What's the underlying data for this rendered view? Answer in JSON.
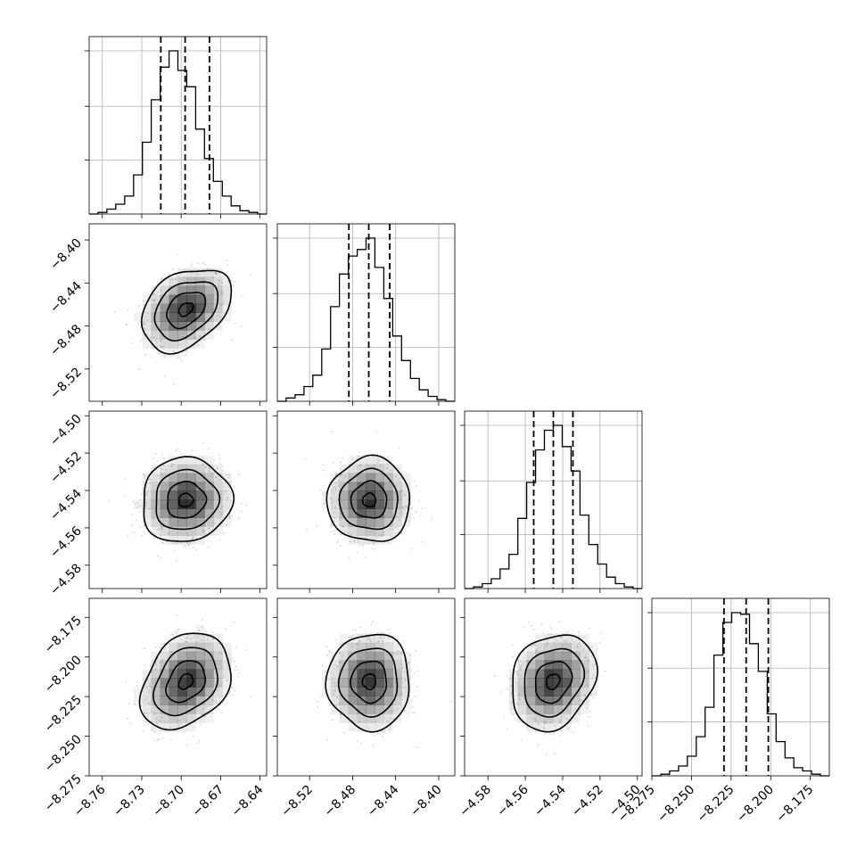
{
  "chart_data": {
    "type": "corner",
    "grid": true,
    "parameters": [
      {
        "range": [
          -8.77,
          -8.635
        ],
        "mean": -8.6965,
        "sd": 0.0155,
        "quantiles": [
          -8.7155,
          -8.697,
          -8.6785
        ]
      },
      {
        "range": [
          -8.55,
          -8.385
        ],
        "mean": -8.4645,
        "sd": 0.0175,
        "quantiles": [
          -8.4835,
          -8.465,
          -8.4455
        ]
      },
      {
        "range": [
          -4.5925,
          -4.4975
        ],
        "mean": -4.5452,
        "sd": 0.0103,
        "quantiles": [
          -4.5555,
          -4.545,
          -4.5345
        ]
      },
      {
        "range": [
          -8.275,
          -8.163
        ],
        "mean": -8.2155,
        "sd": 0.0138,
        "quantiles": [
          -8.2295,
          -8.2155,
          -8.2015
        ]
      }
    ],
    "correlations": {
      "1-0": 0.35,
      "2-0": 0.05,
      "2-1": 0.0,
      "3-0": 0.3,
      "3-1": 0.0,
      "3-2": 0.2
    },
    "hist_levels": [
      [
        0.0,
        0.01,
        0.03,
        0.06,
        0.11,
        0.24,
        0.44,
        0.7,
        0.9,
        1.0,
        0.88,
        0.78,
        0.52,
        0.34,
        0.2,
        0.11,
        0.05,
        0.02,
        0.01,
        0.0
      ],
      [
        0.0,
        0.02,
        0.04,
        0.09,
        0.16,
        0.32,
        0.58,
        0.78,
        0.89,
        0.93,
        1.0,
        0.82,
        0.63,
        0.4,
        0.25,
        0.14,
        0.07,
        0.03,
        0.01,
        0.0
      ],
      [
        0.0,
        0.01,
        0.03,
        0.06,
        0.12,
        0.21,
        0.43,
        0.65,
        0.85,
        0.97,
        1.0,
        0.87,
        0.72,
        0.45,
        0.27,
        0.15,
        0.07,
        0.03,
        0.01,
        0.0
      ],
      [
        0.0,
        0.01,
        0.03,
        0.06,
        0.12,
        0.24,
        0.42,
        0.74,
        0.94,
        1.0,
        0.99,
        0.81,
        0.64,
        0.38,
        0.21,
        0.11,
        0.05,
        0.03,
        0.01,
        0.0
      ]
    ],
    "hist_tick_fractions": [
      0.33,
      0.66,
      1.0
    ],
    "x_ticks": [
      [
        "-8.76",
        "-8.73",
        "-8.70",
        "-8.67",
        "-8.64"
      ],
      [
        "-8.52",
        "-8.48",
        "-8.44",
        "-8.40"
      ],
      [
        "-4.58",
        "-4.56",
        "-4.54",
        "-4.52",
        "-4.50"
      ],
      [
        "-8.275",
        "-8.250",
        "-8.225",
        "-8.200",
        "-8.175"
      ]
    ],
    "y_ticks": [
      null,
      [
        "-8.40",
        "-8.44",
        "-8.48",
        "-8.52"
      ],
      [
        "-4.50",
        "-4.52",
        "-4.54",
        "-4.56",
        "-4.58"
      ],
      [
        "-8.175",
        "-8.200",
        "-8.225",
        "-8.250",
        "-8.275"
      ]
    ],
    "colors": {
      "line": "#000000",
      "grid": "#b0b0b0",
      "points": "#888888",
      "density": "#000000"
    }
  }
}
